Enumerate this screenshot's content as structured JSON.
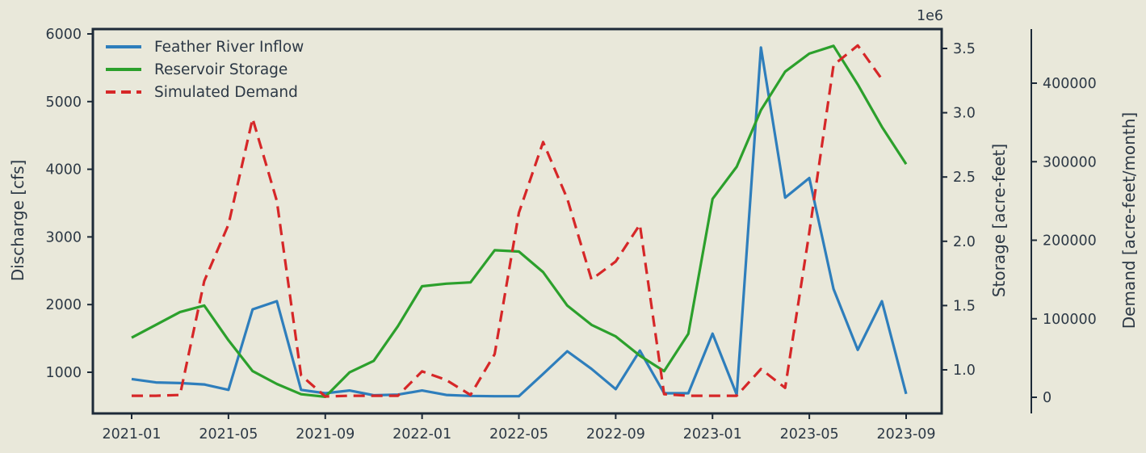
{
  "figure": {
    "background_color": "#e9e8da",
    "frame_color": "#1d2a38",
    "text_color": "#2c3845",
    "offset_text": "1e6"
  },
  "chart_data": {
    "type": "line",
    "title": "",
    "grid": false,
    "legend_position": "upper-left",
    "x_months": [
      "2021-01",
      "2021-02",
      "2021-03",
      "2021-04",
      "2021-05",
      "2021-06",
      "2021-07",
      "2021-08",
      "2021-09",
      "2021-10",
      "2021-11",
      "2021-12",
      "2022-01",
      "2022-02",
      "2022-03",
      "2022-04",
      "2022-05",
      "2022-06",
      "2022-07",
      "2022-08",
      "2022-09",
      "2022-10",
      "2022-11",
      "2022-12",
      "2023-01",
      "2023-02",
      "2023-03",
      "2023-04",
      "2023-05",
      "2023-06",
      "2023-07",
      "2023-08",
      "2023-09"
    ],
    "x_ticks": [
      {
        "i": 0,
        "label": "2021-01"
      },
      {
        "i": 4,
        "label": "2021-05"
      },
      {
        "i": 8,
        "label": "2021-09"
      },
      {
        "i": 12,
        "label": "2022-01"
      },
      {
        "i": 16,
        "label": "2022-05"
      },
      {
        "i": 20,
        "label": "2022-09"
      },
      {
        "i": 24,
        "label": "2023-01"
      },
      {
        "i": 28,
        "label": "2023-05"
      },
      {
        "i": 32,
        "label": "2023-09"
      }
    ],
    "axes": {
      "left": {
        "label": "Discharge [cfs]",
        "ticks": [
          {
            "v": 1000,
            "label": "1000"
          },
          {
            "v": 2000,
            "label": "2000"
          },
          {
            "v": 3000,
            "label": "3000"
          },
          {
            "v": 4000,
            "label": "4000"
          },
          {
            "v": 5000,
            "label": "5000"
          },
          {
            "v": 6000,
            "label": "6000"
          }
        ],
        "range": [
          385,
          6060
        ]
      },
      "right_storage": {
        "label": "Storage [acre-feet]",
        "offset_text": "1e6",
        "ticks": [
          {
            "v": 1000000,
            "label": "1.0"
          },
          {
            "v": 1500000,
            "label": "1.5"
          },
          {
            "v": 2000000,
            "label": "2.0"
          },
          {
            "v": 2500000,
            "label": "2.5"
          },
          {
            "v": 3000000,
            "label": "3.0"
          },
          {
            "v": 3500000,
            "label": "3.5"
          }
        ],
        "range": [
          655000,
          3655000
        ]
      },
      "right_demand": {
        "label": "Demand [acre-feet/month]",
        "ticks": [
          {
            "v": 0,
            "label": "0"
          },
          {
            "v": 100000,
            "label": "100000"
          },
          {
            "v": 200000,
            "label": "200000"
          },
          {
            "v": 300000,
            "label": "300000"
          },
          {
            "v": 400000,
            "label": "400000"
          }
        ],
        "range": [
          -21000,
          470000
        ]
      }
    },
    "series": [
      {
        "name": "Feather River Inflow",
        "axis": "left",
        "color": "#2e7ebc",
        "style": "solid",
        "values": [
          900,
          850,
          840,
          820,
          740,
          1930,
          2050,
          740,
          690,
          730,
          660,
          670,
          730,
          665,
          650,
          645,
          645,
          975,
          1310,
          1050,
          750,
          1320,
          690,
          690,
          1570,
          670,
          5800,
          3580,
          3870,
          2230,
          1330,
          2050,
          680
        ]
      },
      {
        "name": "Reservoir Storage",
        "axis": "right_storage",
        "color": "#2ca02c",
        "style": "solid",
        "values": [
          1250000,
          1350000,
          1450000,
          1500000,
          1230000,
          990000,
          890000,
          810000,
          790000,
          980000,
          1070000,
          1340000,
          1650000,
          1670000,
          1680000,
          1930000,
          1920000,
          1760000,
          1500000,
          1350000,
          1260000,
          1110000,
          990000,
          1280000,
          2330000,
          2580000,
          3020000,
          3320000,
          3460000,
          3520000,
          3220000,
          2890000,
          2600000
        ]
      },
      {
        "name": "Simulated Demand",
        "axis": "right_demand",
        "color": "#d62728",
        "style": "dashed",
        "values": [
          2000,
          2000,
          3000,
          148000,
          220000,
          355000,
          250000,
          28000,
          1000,
          2000,
          2000,
          2000,
          33000,
          22000,
          3000,
          55000,
          235000,
          325000,
          253000,
          150000,
          173000,
          220000,
          4000,
          2000,
          2000,
          2000,
          36000,
          12000,
          210000,
          423000,
          448000,
          405000,
          null
        ]
      }
    ]
  }
}
